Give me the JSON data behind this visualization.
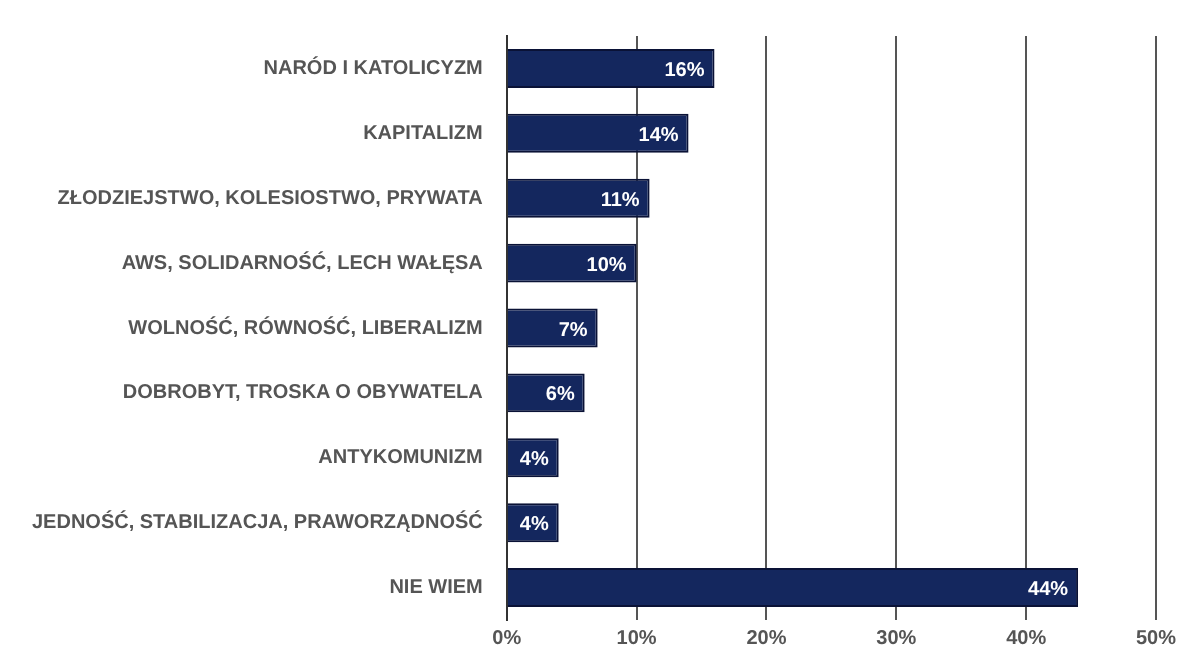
{
  "chart_data": {
    "type": "bar",
    "orientation": "horizontal",
    "categories": [
      "NARÓD I KATOLICYZM",
      "KAPITALIZM",
      "ZŁODZIEJSTWO, KOLESIOSTWO, PRYWATA",
      "AWS, SOLIDARNOŚĆ, LECH WAŁĘSA",
      "WOLNOŚĆ, RÓWNOŚĆ, LIBERALIZM",
      "DOBROBYT, TROSKA O OBYWATELA",
      "ANTYKOMUNIZM",
      "JEDNOŚĆ, STABILIZACJA, PRAWORZĄDNOŚĆ",
      "NIE WIEM"
    ],
    "values": [
      16,
      14,
      11,
      10,
      7,
      6,
      4,
      4,
      44
    ],
    "value_labels": [
      "16%",
      "14%",
      "11%",
      "10%",
      "7%",
      "6%",
      "4%",
      "4%",
      "44%"
    ],
    "color": "#14275e",
    "xlim": [
      0,
      50
    ],
    "xticks": [
      {
        "value": 0,
        "label": "0%"
      },
      {
        "value": 10,
        "label": "10%"
      },
      {
        "value": 20,
        "label": "20%"
      },
      {
        "value": 30,
        "label": "30%"
      },
      {
        "value": 40,
        "label": "40%"
      },
      {
        "value": 50,
        "label": "50%"
      }
    ],
    "grid": "x",
    "legend": false
  }
}
